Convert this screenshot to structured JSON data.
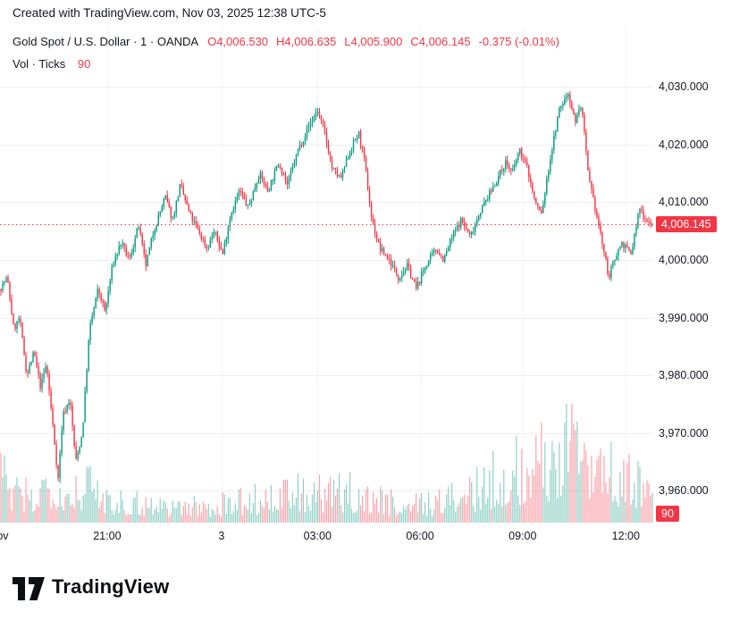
{
  "topbar": {
    "text": "Created with TradingView.com, Nov 03, 2025 12:38 UTC-5"
  },
  "legend": {
    "title": "Gold Spot / U.S. Dollar · 1 · OANDA",
    "values": [
      "O4,006.530",
      "H4,006.635",
      "L4,005.900",
      "C4,006.145",
      "-0.375 (-0.01%)"
    ],
    "row2_label": "Vol · Ticks",
    "row2_value": "90"
  },
  "footer": {
    "brand": "TradingView"
  },
  "colors": {
    "up": "#089981",
    "down": "#F23645",
    "up_volume": "rgba(8,153,129,0.45)",
    "down_volume": "rgba(242,54,69,0.45)",
    "accent_red": "#F23645",
    "grid": "#ECEFF4",
    "grid_vertical": "#F2F4F8",
    "text": "#131722",
    "badge_text": "#FFFFFF"
  },
  "chart_data": {
    "type": "candlestick",
    "title": "Gold Spot / U.S. Dollar",
    "interval": "1",
    "exchange": "OANDA",
    "ohlc": {
      "open": 4006.53,
      "high": 4006.635,
      "low": 4005.9,
      "close": 4006.145,
      "change": -0.375,
      "change_pct": -0.01
    },
    "volume_ticks": 90,
    "volume_badge": "90",
    "last_price": 4006.145,
    "last_price_label": "4,006.145",
    "ylim": [
      3954.5,
      4031.9
    ],
    "grid": true,
    "legend_position": "top-left",
    "y_ticks": [
      {
        "value": 4030,
        "label": "4,030.000"
      },
      {
        "value": 4020,
        "label": "4,020.000"
      },
      {
        "value": 4010,
        "label": "4,010.000"
      },
      {
        "value": 4000,
        "label": "4,000.000"
      },
      {
        "value": 3990,
        "label": "3,990.000"
      },
      {
        "value": 3980,
        "label": "3,980.000"
      },
      {
        "value": 3970,
        "label": "3,970.000"
      },
      {
        "value": 3960,
        "label": "3,960.000"
      }
    ],
    "x_ticks": [
      {
        "label": "ov",
        "t": 0.004
      },
      {
        "label": "21:00",
        "t": 0.164
      },
      {
        "label": "3",
        "t": 0.339
      },
      {
        "label": "03:00",
        "t": 0.486
      },
      {
        "label": "06:00",
        "t": 0.643
      },
      {
        "label": "09:00",
        "t": 0.8
      },
      {
        "label": "12:00",
        "t": 0.958
      }
    ],
    "price_path": [
      [
        0,
        3995
      ],
      [
        0.011,
        3997
      ],
      [
        0.021,
        3988
      ],
      [
        0.03,
        3990
      ],
      [
        0.041,
        3980
      ],
      [
        0.052,
        3984
      ],
      [
        0.062,
        3978
      ],
      [
        0.071,
        3982
      ],
      [
        0.082,
        3970
      ],
      [
        0.089,
        3962
      ],
      [
        0.096,
        3973
      ],
      [
        0.107,
        3976
      ],
      [
        0.116,
        3965
      ],
      [
        0.126,
        3970
      ],
      [
        0.137,
        3988
      ],
      [
        0.15,
        3995
      ],
      [
        0.161,
        3991
      ],
      [
        0.172,
        3999
      ],
      [
        0.185,
        4003
      ],
      [
        0.198,
        4000
      ],
      [
        0.212,
        4006
      ],
      [
        0.223,
        3999
      ],
      [
        0.235,
        4005
      ],
      [
        0.253,
        4011
      ],
      [
        0.264,
        4007
      ],
      [
        0.276,
        4013
      ],
      [
        0.29,
        4008
      ],
      [
        0.304,
        4005
      ],
      [
        0.317,
        4002
      ],
      [
        0.328,
        4005
      ],
      [
        0.341,
        4001
      ],
      [
        0.353,
        4008
      ],
      [
        0.367,
        4012
      ],
      [
        0.38,
        4009
      ],
      [
        0.397,
        4015
      ],
      [
        0.41,
        4012
      ],
      [
        0.427,
        4017
      ],
      [
        0.44,
        4013
      ],
      [
        0.456,
        4019
      ],
      [
        0.472,
        4023
      ],
      [
        0.486,
        4026
      ],
      [
        0.497,
        4022
      ],
      [
        0.508,
        4016
      ],
      [
        0.521,
        4014
      ],
      [
        0.536,
        4019
      ],
      [
        0.549,
        4022
      ],
      [
        0.558,
        4017
      ],
      [
        0.569,
        4007
      ],
      [
        0.581,
        4002
      ],
      [
        0.596,
        4000
      ],
      [
        0.61,
        3997
      ],
      [
        0.624,
        3999
      ],
      [
        0.637,
        3995
      ],
      [
        0.651,
        3999
      ],
      [
        0.668,
        4002
      ],
      [
        0.679,
        4000
      ],
      [
        0.692,
        4004
      ],
      [
        0.706,
        4007
      ],
      [
        0.72,
        4004
      ],
      [
        0.733,
        4008
      ],
      [
        0.747,
        4011
      ],
      [
        0.761,
        4014
      ],
      [
        0.774,
        4017
      ],
      [
        0.784,
        4015
      ],
      [
        0.795,
        4019
      ],
      [
        0.807,
        4016
      ],
      [
        0.819,
        4010
      ],
      [
        0.829,
        4008
      ],
      [
        0.843,
        4018
      ],
      [
        0.856,
        4026
      ],
      [
        0.87,
        4029
      ],
      [
        0.88,
        4024
      ],
      [
        0.89,
        4027
      ],
      [
        0.901,
        4014
      ],
      [
        0.911,
        4009
      ],
      [
        0.92,
        4004
      ],
      [
        0.932,
        3997
      ],
      [
        0.943,
        4001
      ],
      [
        0.952,
        4003
      ],
      [
        0.966,
        4001
      ],
      [
        0.979,
        4009
      ],
      [
        0.989,
        4007
      ],
      [
        1,
        4006.1
      ]
    ],
    "volume_path": [
      [
        0,
        0.55
      ],
      [
        0.02,
        0.3
      ],
      [
        0.05,
        0.28
      ],
      [
        0.08,
        0.5
      ],
      [
        0.1,
        0.32
      ],
      [
        0.13,
        0.42
      ],
      [
        0.16,
        0.3
      ],
      [
        0.2,
        0.22
      ],
      [
        0.25,
        0.2
      ],
      [
        0.3,
        0.18
      ],
      [
        0.34,
        0.2
      ],
      [
        0.38,
        0.25
      ],
      [
        0.42,
        0.28
      ],
      [
        0.46,
        0.32
      ],
      [
        0.5,
        0.3
      ],
      [
        0.54,
        0.32
      ],
      [
        0.58,
        0.25
      ],
      [
        0.62,
        0.2
      ],
      [
        0.66,
        0.22
      ],
      [
        0.7,
        0.28
      ],
      [
        0.73,
        0.35
      ],
      [
        0.76,
        0.5
      ],
      [
        0.79,
        0.55
      ],
      [
        0.82,
        0.6
      ],
      [
        0.85,
        0.75
      ],
      [
        0.87,
        0.95
      ],
      [
        0.88,
        1.0
      ],
      [
        0.9,
        0.85
      ],
      [
        0.92,
        0.65
      ],
      [
        0.94,
        0.55
      ],
      [
        0.96,
        0.45
      ],
      [
        0.98,
        0.4
      ],
      [
        1,
        0.35
      ]
    ]
  }
}
